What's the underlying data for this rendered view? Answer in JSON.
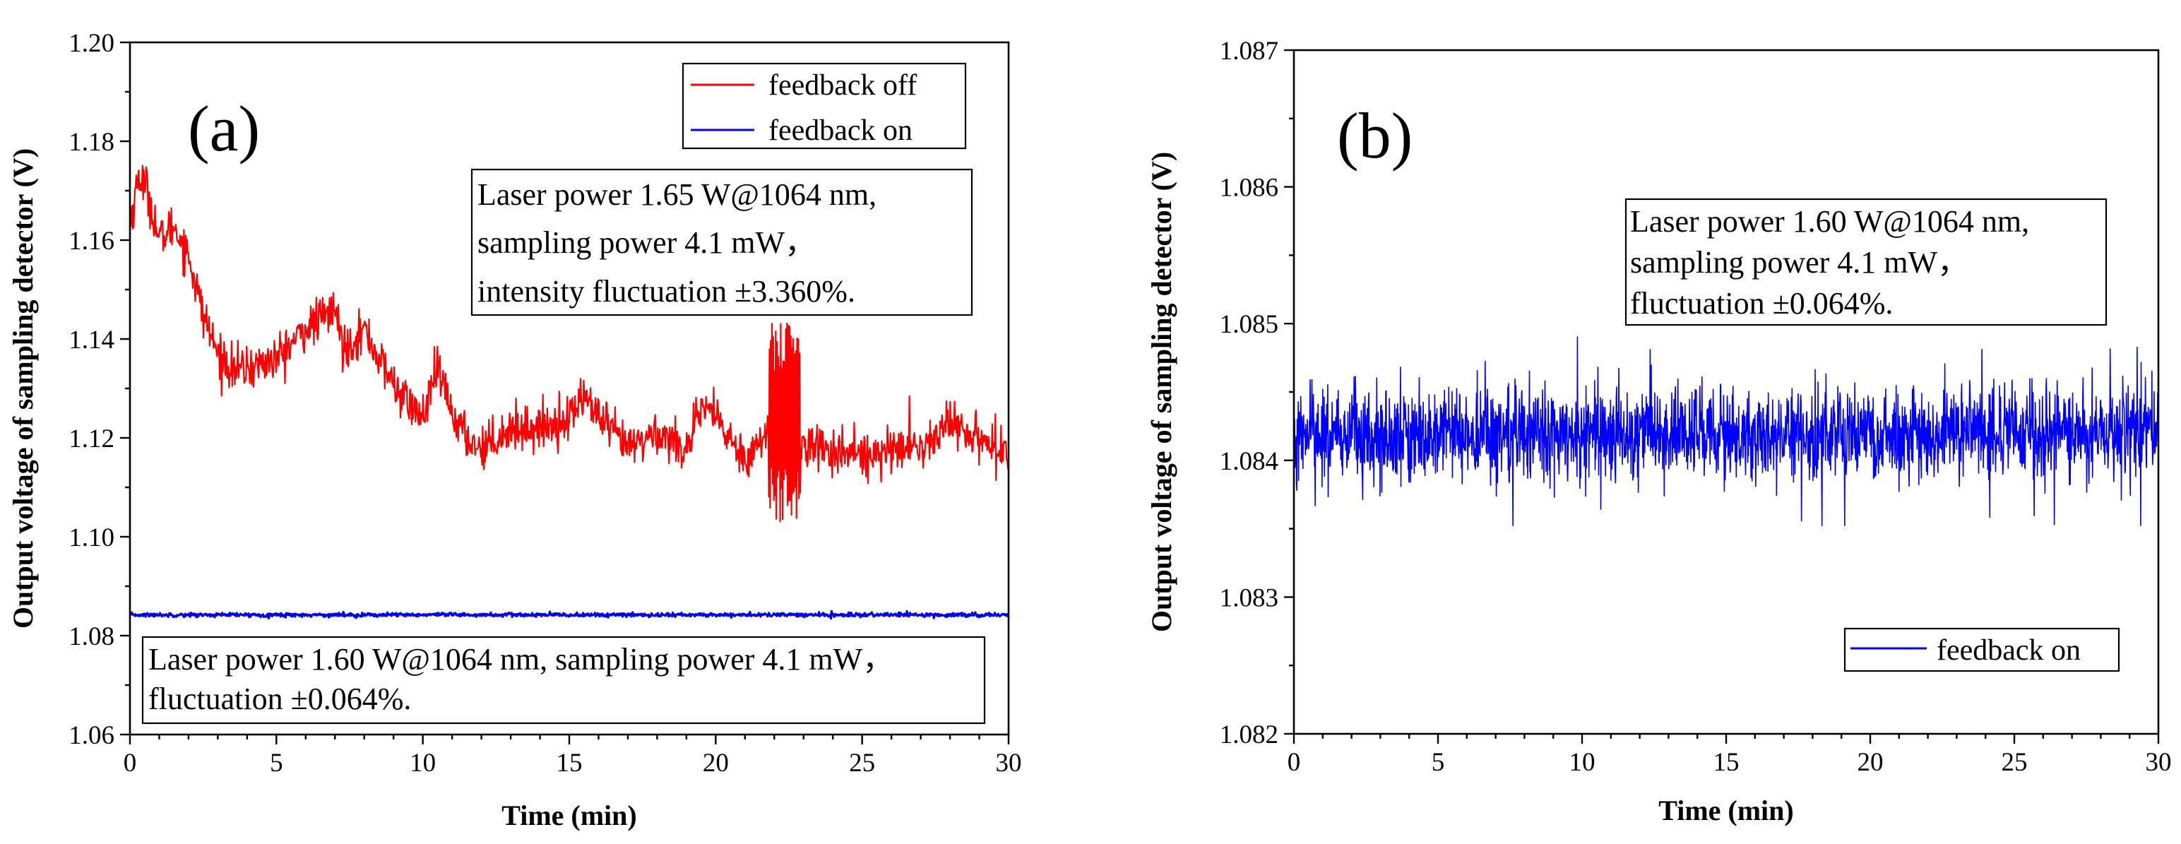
{
  "chart_data": [
    {
      "type": "line",
      "panel_label": "(a)",
      "xlabel": "Time (min)",
      "ylabel": "Output voltage of sampling detector (V)",
      "xlim": [
        0,
        30
      ],
      "ylim": [
        1.06,
        1.2
      ],
      "x_ticks": [
        "0",
        "5",
        "10",
        "15",
        "20",
        "25",
        "30"
      ],
      "y_ticks": [
        "1.06",
        "1.08",
        "1.10",
        "1.12",
        "1.14",
        "1.16",
        "1.18",
        "1.20"
      ],
      "legend": [
        "feedback off",
        "feedback on"
      ],
      "series": [
        {
          "name": "feedback off",
          "color": "#ff0000",
          "noise": 0.0022,
          "points": [
            [
              0,
              1.163
            ],
            [
              0.3,
              1.173
            ],
            [
              0.6,
              1.17
            ],
            [
              1.0,
              1.16
            ],
            [
              1.5,
              1.163
            ],
            [
              2.0,
              1.157
            ],
            [
              2.5,
              1.145
            ],
            [
              3.0,
              1.137
            ],
            [
              3.5,
              1.134
            ],
            [
              4.0,
              1.134
            ],
            [
              5.0,
              1.136
            ],
            [
              6.0,
              1.142
            ],
            [
              7.0,
              1.146
            ],
            [
              7.3,
              1.138
            ],
            [
              8.0,
              1.142
            ],
            [
              8.5,
              1.136
            ],
            [
              9.0,
              1.131
            ],
            [
              9.5,
              1.127
            ],
            [
              10.0,
              1.124
            ],
            [
              10.5,
              1.134
            ],
            [
              11.0,
              1.125
            ],
            [
              11.5,
              1.12
            ],
            [
              12.0,
              1.118
            ],
            [
              13.0,
              1.122
            ],
            [
              14.0,
              1.122
            ],
            [
              15.0,
              1.124
            ],
            [
              15.5,
              1.129
            ],
            [
              16.0,
              1.124
            ],
            [
              17.0,
              1.118
            ],
            [
              18.0,
              1.121
            ],
            [
              19.0,
              1.118
            ],
            [
              19.7,
              1.127
            ],
            [
              20.2,
              1.122
            ],
            [
              21.0,
              1.116
            ],
            [
              22.0,
              1.122
            ],
            [
              22.8,
              1.119
            ],
            [
              23.5,
              1.118
            ],
            [
              24.5,
              1.117
            ],
            [
              25.0,
              1.117
            ],
            [
              26.0,
              1.118
            ],
            [
              27.0,
              1.118
            ],
            [
              28.0,
              1.123
            ],
            [
              29.0,
              1.12
            ],
            [
              30.0,
              1.117
            ]
          ],
          "bursts": [
            {
              "x0": 21.8,
              "x1": 22.9,
              "low": 1.103,
              "high": 1.145
            }
          ]
        },
        {
          "name": "feedback on",
          "color": "#0000ff",
          "noise": 0.0002,
          "points": [
            [
              0,
              1.0842
            ],
            [
              30,
              1.0842
            ]
          ]
        }
      ],
      "annotations": [
        {
          "lines": [
            "Laser power 1.65 W@1064 nm,",
            "sampling power 4.1 mW，",
            "intensity fluctuation ±3.360%."
          ]
        },
        {
          "lines": [
            "Laser power 1.60 W@1064 nm, sampling power 4.1 mW，",
            "fluctuation ±0.064%."
          ]
        }
      ]
    },
    {
      "type": "line",
      "panel_label": "(b)",
      "xlabel": "Time (min)",
      "ylabel": "Output voltage of sampling detector (V)",
      "xlim": [
        0,
        30
      ],
      "ylim": [
        1.082,
        1.087
      ],
      "x_ticks": [
        "0",
        "5",
        "10",
        "15",
        "20",
        "25",
        "30"
      ],
      "y_ticks": [
        "1.082",
        "1.083",
        "1.084",
        "1.085",
        "1.086",
        "1.087"
      ],
      "legend": [
        "feedback on"
      ],
      "series": [
        {
          "name": "feedback on",
          "color": "#0000ff",
          "mean": 1.0842,
          "noise": 0.00016,
          "min": 1.08352,
          "max": 1.08494
        }
      ],
      "annotations": [
        {
          "lines": [
            "Laser power 1.60 W@1064 nm,",
            "sampling power 4.1 mW，",
            "fluctuation ±0.064%."
          ]
        }
      ]
    }
  ]
}
